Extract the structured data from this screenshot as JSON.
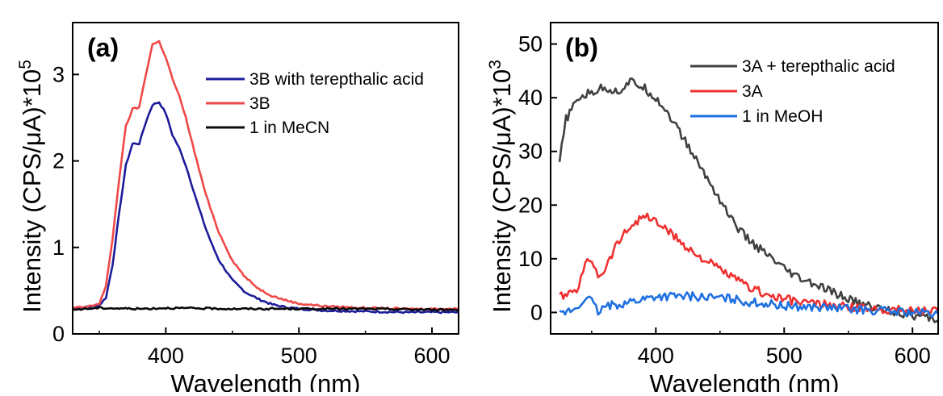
{
  "chart_data": [
    {
      "type": "line",
      "panel_label": "(a)",
      "xlabel": "Wavelength (nm)",
      "ylabel": "Intensity (CPS/μA)*10",
      "ylabel_exponent": "5",
      "xlim": [
        330,
        620
      ],
      "ylim": [
        0,
        3.6
      ],
      "xticks": [
        400,
        500,
        600
      ],
      "yticks": [
        0,
        1,
        2,
        3
      ],
      "legend_position": "top-right",
      "series": [
        {
          "name": "3B with terepthalic acid",
          "color": "#1c1c9a",
          "points": [
            [
              330,
              0.3
            ],
            [
              340,
              0.31
            ],
            [
              350,
              0.33
            ],
            [
              355,
              0.42
            ],
            [
              360,
              0.8
            ],
            [
              365,
              1.4
            ],
            [
              370,
              1.95
            ],
            [
              375,
              2.2
            ],
            [
              380,
              2.2
            ],
            [
              385,
              2.45
            ],
            [
              390,
              2.65
            ],
            [
              395,
              2.68
            ],
            [
              400,
              2.55
            ],
            [
              405,
              2.3
            ],
            [
              410,
              2.15
            ],
            [
              415,
              1.95
            ],
            [
              420,
              1.7
            ],
            [
              425,
              1.45
            ],
            [
              430,
              1.22
            ],
            [
              435,
              1.02
            ],
            [
              440,
              0.85
            ],
            [
              450,
              0.62
            ],
            [
              460,
              0.48
            ],
            [
              470,
              0.4
            ],
            [
              480,
              0.34
            ],
            [
              490,
              0.31
            ],
            [
              500,
              0.29
            ],
            [
              520,
              0.27
            ],
            [
              550,
              0.26
            ],
            [
              580,
              0.25
            ],
            [
              620,
              0.25
            ]
          ]
        },
        {
          "name": "3B",
          "color": "#f04848",
          "points": [
            [
              330,
              0.3
            ],
            [
              340,
              0.31
            ],
            [
              350,
              0.35
            ],
            [
              355,
              0.55
            ],
            [
              360,
              1.1
            ],
            [
              365,
              1.8
            ],
            [
              370,
              2.4
            ],
            [
              375,
              2.6
            ],
            [
              380,
              2.62
            ],
            [
              385,
              3.0
            ],
            [
              390,
              3.35
            ],
            [
              395,
              3.38
            ],
            [
              400,
              3.2
            ],
            [
              405,
              2.95
            ],
            [
              410,
              2.75
            ],
            [
              415,
              2.5
            ],
            [
              420,
              2.2
            ],
            [
              425,
              1.9
            ],
            [
              430,
              1.62
            ],
            [
              435,
              1.38
            ],
            [
              440,
              1.17
            ],
            [
              450,
              0.85
            ],
            [
              460,
              0.65
            ],
            [
              470,
              0.52
            ],
            [
              480,
              0.44
            ],
            [
              490,
              0.39
            ],
            [
              500,
              0.35
            ],
            [
              520,
              0.32
            ],
            [
              550,
              0.3
            ],
            [
              580,
              0.29
            ],
            [
              620,
              0.29
            ]
          ]
        },
        {
          "name": "1 in MeCN",
          "color": "#0a0a0a",
          "points": [
            [
              330,
              0.28
            ],
            [
              350,
              0.3
            ],
            [
              380,
              0.29
            ],
            [
              400,
              0.3
            ],
            [
              450,
              0.29
            ],
            [
              500,
              0.29
            ],
            [
              550,
              0.29
            ],
            [
              600,
              0.28
            ],
            [
              620,
              0.28
            ]
          ]
        }
      ]
    },
    {
      "type": "line",
      "panel_label": "(b)",
      "xlabel": "Wavelength (nm)",
      "ylabel": "Intensity (CPS/μA)*10",
      "ylabel_exponent": "3",
      "xlim": [
        318,
        620
      ],
      "ylim": [
        -4,
        54
      ],
      "xticks": [
        400,
        500,
        600
      ],
      "yticks": [
        0,
        10,
        20,
        30,
        40,
        50
      ],
      "legend_position": "top-right",
      "series": [
        {
          "name": "3A + terepthalic acid",
          "color": "#404040",
          "points": [
            [
              325,
              28
            ],
            [
              330,
              36
            ],
            [
              340,
              40
            ],
            [
              350,
              41
            ],
            [
              360,
              42
            ],
            [
              370,
              41
            ],
            [
              380,
              43
            ],
            [
              390,
              42
            ],
            [
              400,
              40
            ],
            [
              410,
              37
            ],
            [
              420,
              33
            ],
            [
              430,
              29
            ],
            [
              440,
              25
            ],
            [
              450,
              21
            ],
            [
              460,
              17
            ],
            [
              470,
              14
            ],
            [
              480,
              12
            ],
            [
              490,
              10
            ],
            [
              500,
              8
            ],
            [
              510,
              6.5
            ],
            [
              520,
              5.5
            ],
            [
              530,
              4.5
            ],
            [
              540,
              3.5
            ],
            [
              550,
              2.5
            ],
            [
              560,
              1.5
            ],
            [
              570,
              1
            ],
            [
              580,
              0.5
            ],
            [
              590,
              0
            ],
            [
              600,
              -0.5
            ],
            [
              610,
              -1
            ],
            [
              620,
              -1.5
            ]
          ]
        },
        {
          "name": "3A",
          "color": "#ee3030",
          "points": [
            [
              325,
              3
            ],
            [
              335,
              3.5
            ],
            [
              340,
              5
            ],
            [
              345,
              9
            ],
            [
              350,
              10
            ],
            [
              355,
              7
            ],
            [
              360,
              8
            ],
            [
              370,
              13
            ],
            [
              380,
              16
            ],
            [
              390,
              18
            ],
            [
              395,
              17.5
            ],
            [
              400,
              17
            ],
            [
              410,
              15
            ],
            [
              420,
              13
            ],
            [
              430,
              11
            ],
            [
              440,
              9.5
            ],
            [
              450,
              8
            ],
            [
              460,
              6.5
            ],
            [
              470,
              5
            ],
            [
              480,
              4
            ],
            [
              490,
              3
            ],
            [
              500,
              2.5
            ],
            [
              510,
              2
            ],
            [
              520,
              1.8
            ],
            [
              530,
              1.5
            ],
            [
              540,
              1.2
            ],
            [
              550,
              1
            ],
            [
              560,
              0.8
            ],
            [
              580,
              0.6
            ],
            [
              600,
              0.5
            ],
            [
              620,
              0.3
            ]
          ]
        },
        {
          "name": "1 in MeOH",
          "color": "#1f70e0",
          "points": [
            [
              325,
              -0.5
            ],
            [
              335,
              0.5
            ],
            [
              340,
              1
            ],
            [
              345,
              3
            ],
            [
              350,
              2
            ],
            [
              355,
              0
            ],
            [
              360,
              1
            ],
            [
              370,
              1.5
            ],
            [
              380,
              2
            ],
            [
              390,
              2.5
            ],
            [
              400,
              3
            ],
            [
              410,
              3
            ],
            [
              420,
              3
            ],
            [
              430,
              3
            ],
            [
              440,
              2.8
            ],
            [
              450,
              2.7
            ],
            [
              460,
              2.5
            ],
            [
              470,
              2
            ],
            [
              480,
              1.8
            ],
            [
              490,
              1.5
            ],
            [
              500,
              1.2
            ],
            [
              520,
              1
            ],
            [
              540,
              0.8
            ],
            [
              560,
              0.5
            ],
            [
              580,
              0.3
            ],
            [
              600,
              0
            ],
            [
              620,
              -0.3
            ]
          ]
        }
      ]
    }
  ]
}
